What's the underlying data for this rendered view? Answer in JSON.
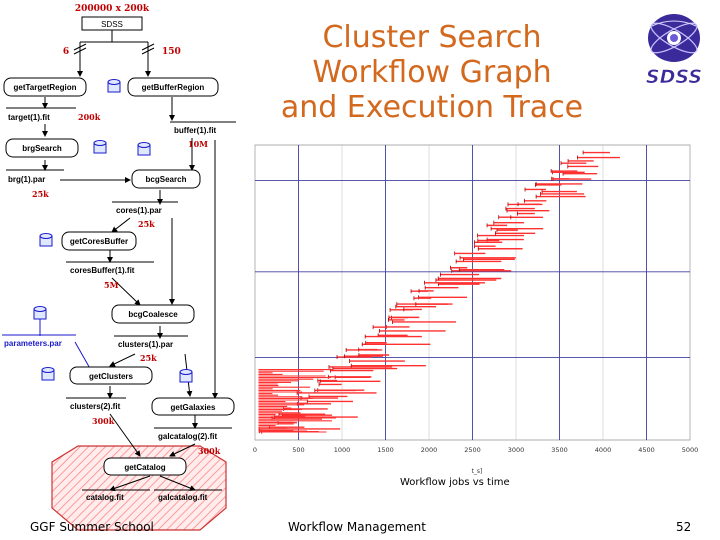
{
  "slide": {
    "title_lines": [
      "Cluster Search",
      "Workflow Graph",
      "and Execution Trace"
    ],
    "footer_left": "GGF Summer School",
    "footer_center": "Workflow Management",
    "page_number": "52",
    "logo_text": "SDSS",
    "colors": {
      "title": "#d2691e",
      "bar": "#ff3030",
      "grid": "#4040a0",
      "label_red": "#c00000",
      "param_blue": "#1a1acc"
    }
  },
  "workflow": {
    "top_label": "200000 x 200k",
    "sdss_box": "SDSS",
    "split_left": "6",
    "split_right": "150",
    "jobs": {
      "getTargetRegion": "getTargetRegion",
      "getBufferRegion": "getBufferRegion",
      "brgSearch": "brgSearch",
      "bcgSearch": "bcgSearch",
      "getCoresBuffer": "getCoresBuffer",
      "bcgCoalesce": "bcgCoalesce",
      "getClusters": "getClusters",
      "getGalaxies": "getGalaxies",
      "getCatalog": "getCatalog"
    },
    "files": {
      "target": "target(1).fit",
      "buffer": "buffer(1).fit",
      "brg": "brg(1).par",
      "cores": "cores(1).par",
      "coresBuffer": "coresBuffer(1).fit",
      "parameters": "parameters.par",
      "clusters1": "clusters(1).par",
      "clusters2": "clusters(2).fit",
      "galcatalog2": "galcatalog(2).fit",
      "catalog": "catalog.fit",
      "galcatalog": "galcatalog.fit"
    },
    "sizes": {
      "target": "200k",
      "buffer": "10M",
      "brg": "25k",
      "cores": "25k",
      "coresBuffer": "5M",
      "clusters1": "25k",
      "clusters2": "300k",
      "galcatalog2": "300k"
    }
  },
  "chart_data": {
    "type": "gantt",
    "caption": "Workflow jobs vs time",
    "xlabel": "t_s]",
    "xlim": [
      0,
      5000
    ],
    "xticks": [
      "0",
      "500",
      "1000",
      "1500",
      "2000",
      "2500",
      "3000",
      "3500",
      "4000",
      "4500",
      "5000"
    ],
    "description": "Horizontal execution bars per workflow job, start times rising over time",
    "job_count": 100
  }
}
